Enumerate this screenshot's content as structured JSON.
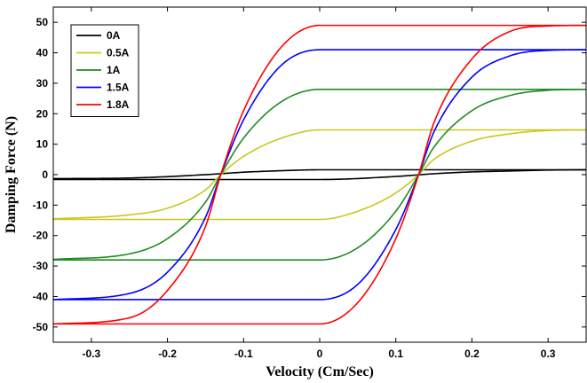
{
  "chart_data": {
    "type": "line",
    "xlabel": "Velocity (Cm/Sec)",
    "ylabel": "Damping Force (N)",
    "xlim": [
      -0.35,
      0.35
    ],
    "ylim": [
      -55,
      55
    ],
    "x_ticks": [
      -0.3,
      -0.2,
      -0.1,
      0,
      0.1,
      0.2,
      0.3
    ],
    "x_tick_labels": [
      "-0.3",
      "-0.2",
      "-0.1",
      "0",
      "0.1",
      "0.2",
      "0.3"
    ],
    "y_ticks": [
      -50,
      -40,
      -30,
      -20,
      -10,
      0,
      10,
      20,
      30,
      40,
      50
    ],
    "y_tick_labels": [
      "-50",
      "-40",
      "-30",
      "-20",
      "-10",
      "0",
      "10",
      "20",
      "30",
      "40",
      "50"
    ],
    "legend_position": "top-left",
    "grid": false,
    "series": [
      {
        "name": "0A",
        "color": "#000000",
        "upper_branch": {
          "x": [
            -0.35,
            -0.25,
            -0.15,
            -0.1,
            -0.05,
            0,
            0.35
          ],
          "y": [
            -1.3,
            -1.1,
            0,
            0.8,
            1.3,
            1.6,
            1.6
          ]
        },
        "lower_branch": {
          "x": [
            -0.35,
            0,
            0.1,
            0.15,
            0.2,
            0.25,
            0.3,
            0.35
          ],
          "y": [
            -1.6,
            -1.6,
            -0.6,
            0.3,
            0.9,
            1.2,
            1.5,
            1.6
          ]
        }
      },
      {
        "name": "0.5A",
        "color": "#c8c81e",
        "upper_branch": {
          "x": [
            -0.35,
            -0.25,
            -0.2,
            -0.15,
            -0.13,
            -0.1,
            -0.05,
            0,
            0.35
          ],
          "y": [
            -14.5,
            -13.2,
            -11,
            -5,
            0,
            6,
            12,
            14.7,
            14.7
          ]
        },
        "lower_branch": {
          "x": [
            -0.35,
            0,
            0.05,
            0.1,
            0.13,
            0.15,
            0.2,
            0.25,
            0.3,
            0.35
          ],
          "y": [
            -14.7,
            -14.7,
            -12,
            -6,
            0,
            5,
            11,
            13.4,
            14.5,
            14.7
          ]
        }
      },
      {
        "name": "1A",
        "color": "#228b22",
        "upper_branch": {
          "x": [
            -0.35,
            -0.25,
            -0.2,
            -0.15,
            -0.13,
            -0.1,
            -0.05,
            0,
            0.35
          ],
          "y": [
            -27.8,
            -26,
            -21,
            -9,
            0,
            12,
            24,
            28,
            28
          ]
        },
        "lower_branch": {
          "x": [
            -0.35,
            0,
            0.05,
            0.1,
            0.13,
            0.15,
            0.2,
            0.25,
            0.3,
            0.35
          ],
          "y": [
            -28,
            -28,
            -24,
            -12,
            0,
            9,
            21,
            26,
            27.7,
            28
          ]
        }
      },
      {
        "name": "1.5A",
        "color": "#0000ff",
        "upper_branch": {
          "x": [
            -0.35,
            -0.25,
            -0.2,
            -0.15,
            -0.13,
            -0.1,
            -0.05,
            0,
            0.35
          ],
          "y": [
            -41,
            -39,
            -32,
            -14,
            0,
            18,
            36,
            41,
            41
          ]
        },
        "lower_branch": {
          "x": [
            -0.35,
            0,
            0.05,
            0.1,
            0.13,
            0.15,
            0.2,
            0.25,
            0.3,
            0.35
          ],
          "y": [
            -41,
            -41,
            -36,
            -18,
            0,
            14,
            32,
            39,
            40.8,
            41
          ]
        }
      },
      {
        "name": "1.8A",
        "color": "#ff0000",
        "upper_branch": {
          "x": [
            -0.35,
            -0.25,
            -0.2,
            -0.15,
            -0.13,
            -0.1,
            -0.05,
            0,
            0.35
          ],
          "y": [
            -49,
            -47,
            -38,
            -17,
            0,
            21,
            42,
            49,
            49
          ]
        },
        "lower_branch": {
          "x": [
            -0.35,
            0,
            0.05,
            0.1,
            0.13,
            0.15,
            0.2,
            0.25,
            0.3,
            0.35
          ],
          "y": [
            -49,
            -49,
            -42,
            -21,
            0,
            17,
            38,
            47,
            48.8,
            49
          ]
        }
      }
    ]
  }
}
